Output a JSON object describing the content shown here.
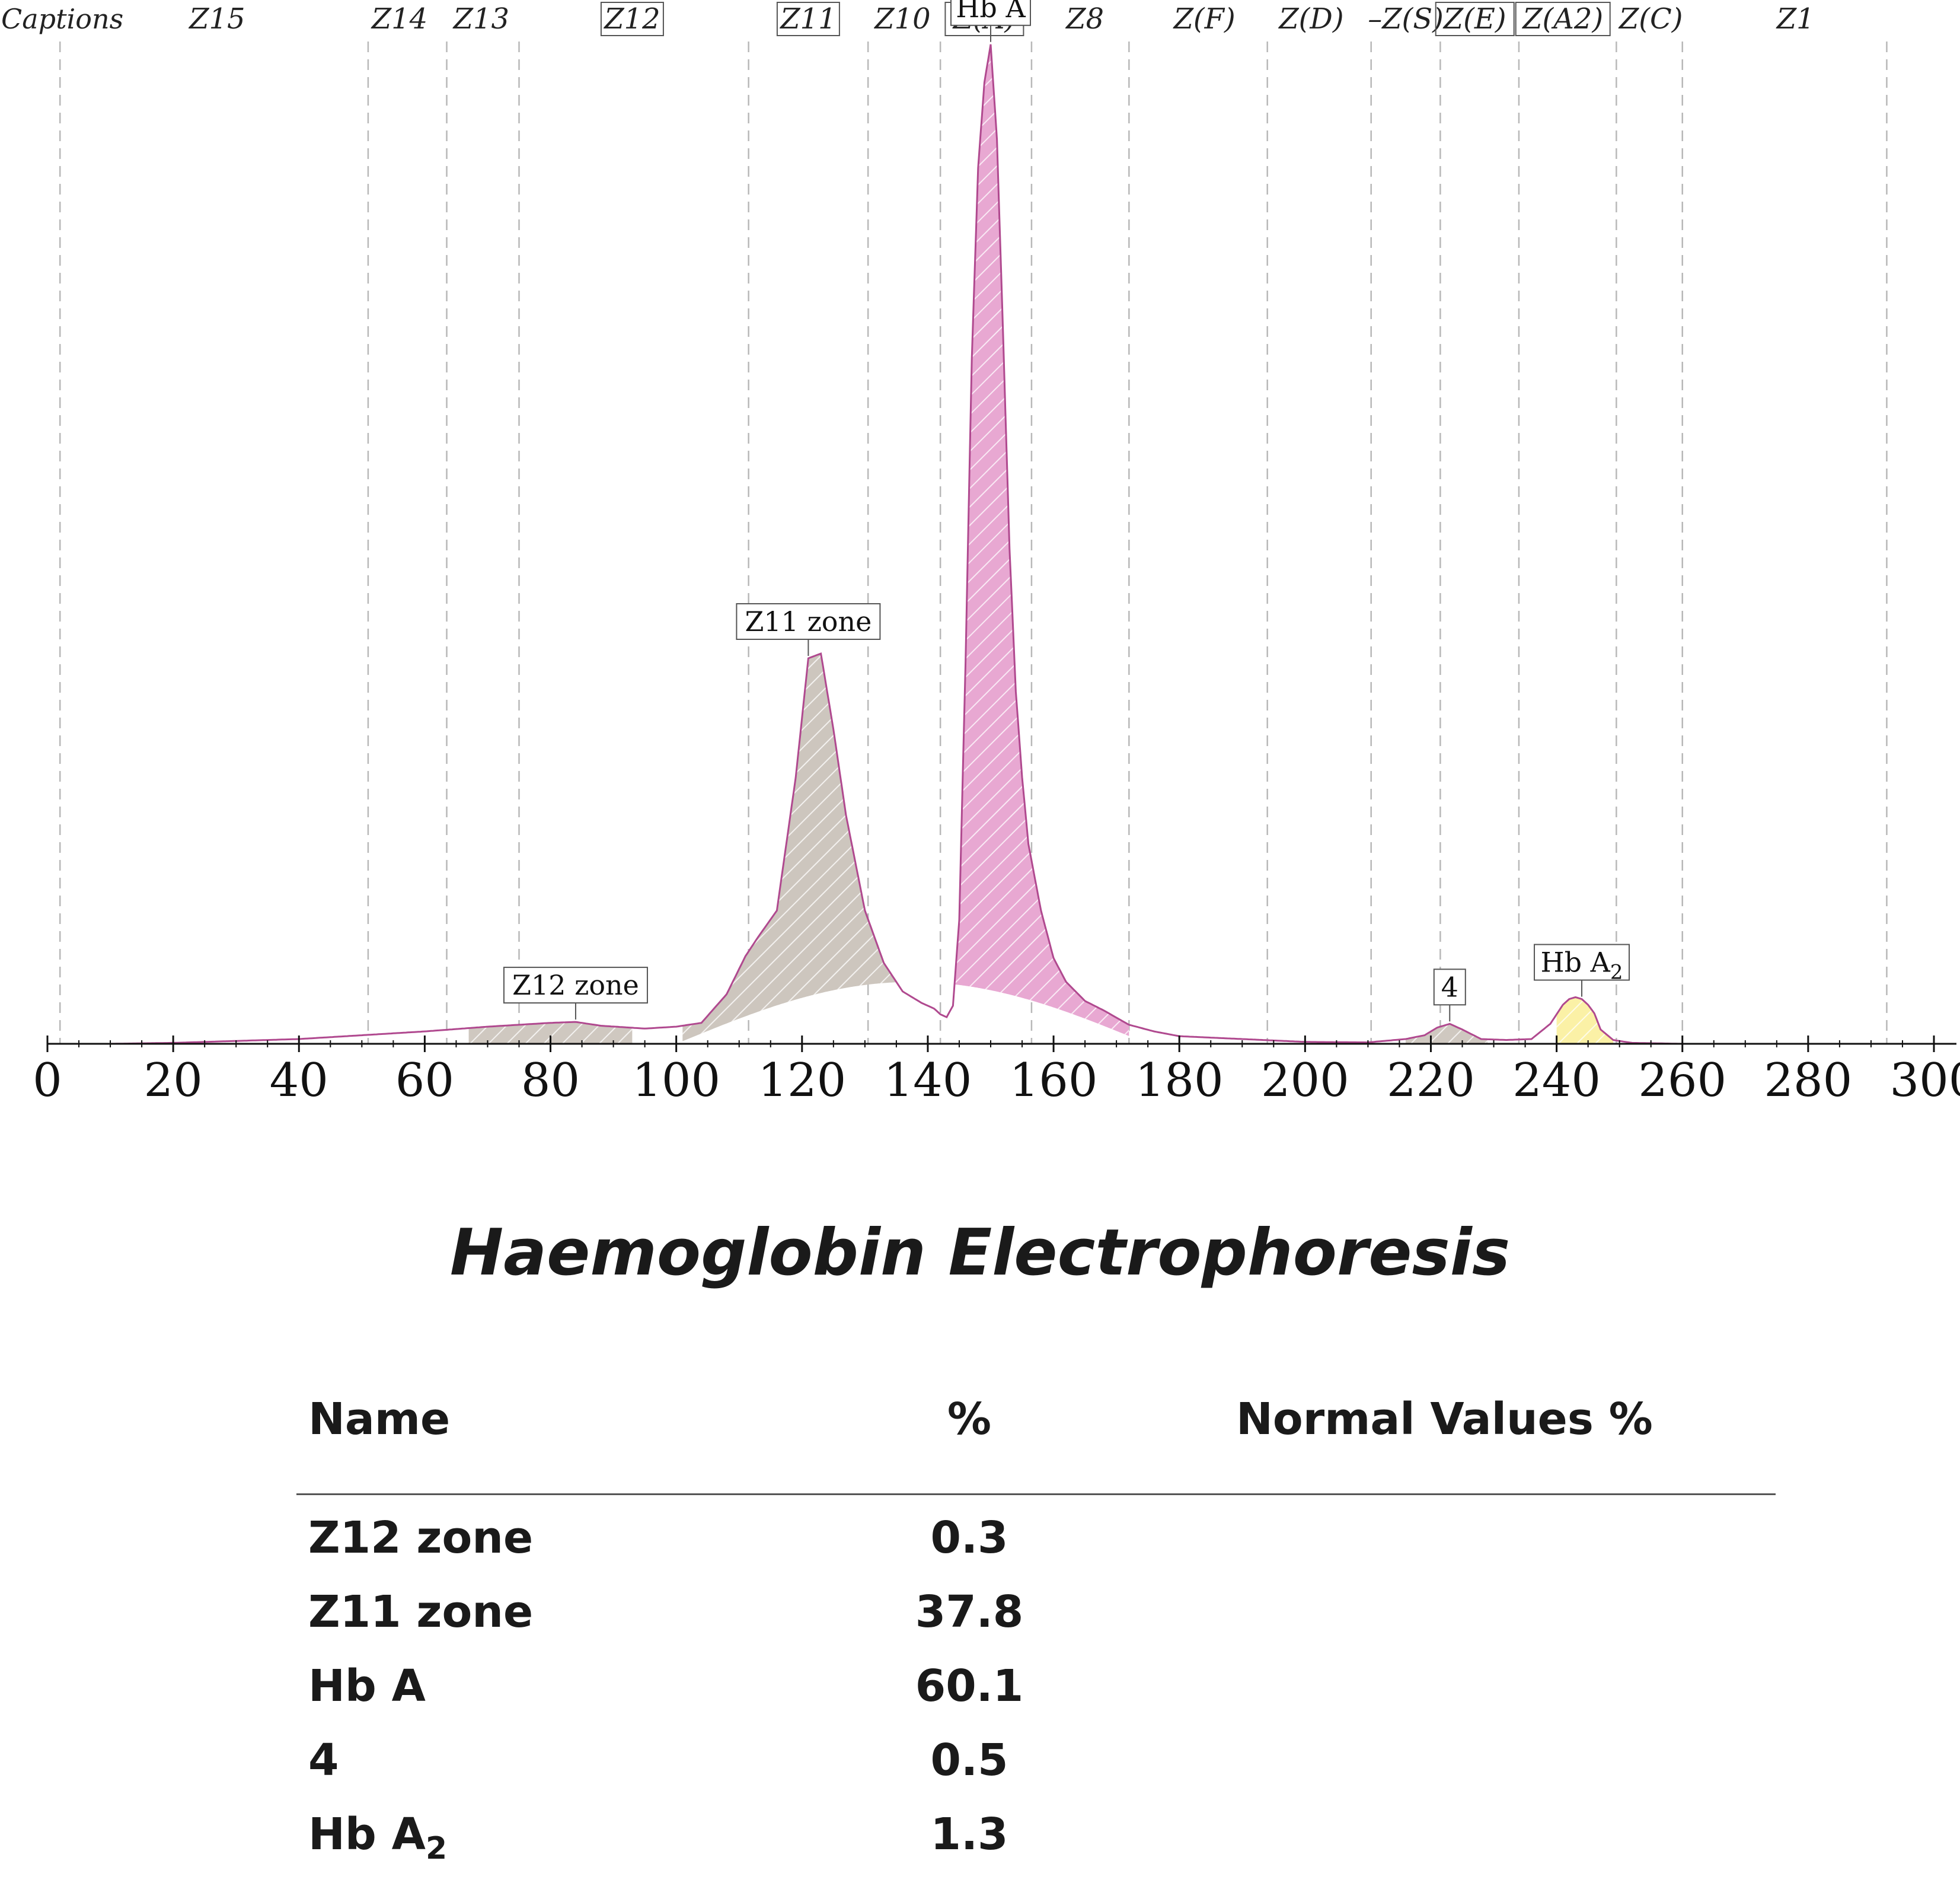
{
  "chart_data": {
    "type": "area",
    "title": "",
    "xlabel": "",
    "ylabel": "",
    "xlim": [
      0,
      300
    ],
    "x_ticks": [
      "0",
      "20",
      "40",
      "60",
      "80",
      "100",
      "120",
      "140",
      "160",
      "180",
      "200",
      "220",
      "240",
      "260",
      "280",
      "300"
    ],
    "x_tick_values": [
      0,
      20,
      40,
      60,
      80,
      100,
      120,
      140,
      160,
      180,
      200,
      220,
      240,
      260,
      280,
      300
    ],
    "grid": "vertical dashed zone boundaries",
    "caption_row_label": "Captions",
    "zones": [
      {
        "label": "Z15",
        "boxed": false
      },
      {
        "label": "Z14",
        "boxed": false
      },
      {
        "label": "Z13",
        "boxed": false
      },
      {
        "label": "Z12",
        "boxed": true
      },
      {
        "label": "Z11",
        "boxed": true
      },
      {
        "label": "Z10",
        "boxed": false
      },
      {
        "label": "Z(A)",
        "boxed": true
      },
      {
        "label": "Z8",
        "boxed": false
      },
      {
        "label": "Z(F)",
        "boxed": false
      },
      {
        "label": "Z(D)",
        "boxed": false
      },
      {
        "label": "–Z(S)",
        "boxed": false
      },
      {
        "label": "Z(E)",
        "boxed": true
      },
      {
        "label": "Z(A2)",
        "boxed": true
      },
      {
        "label": "Z(C)",
        "boxed": false
      },
      {
        "label": "Z1",
        "boxed": false
      }
    ],
    "zone_centers": [
      27,
      56,
      69,
      93,
      121,
      136,
      149,
      165,
      184,
      201,
      216,
      227,
      241,
      255,
      278
    ],
    "zone_boundaries": [
      2,
      51,
      63.5,
      75,
      111.5,
      130.5,
      142,
      156.5,
      172,
      194,
      210.5,
      221.5,
      234,
      249.5,
      260,
      292.5
    ],
    "ylim": [
      0,
      100
    ],
    "trace": {
      "x": [
        0,
        10,
        20,
        30,
        40,
        50,
        60,
        70,
        80,
        84,
        88,
        95,
        100,
        104,
        108,
        111,
        113,
        116,
        119,
        121,
        123,
        125,
        127,
        130,
        133,
        136,
        139,
        141,
        142,
        143,
        144,
        145,
        146,
        147,
        148,
        149,
        150,
        151,
        152,
        153,
        154,
        155,
        156,
        158,
        160,
        162,
        165,
        168,
        172,
        176,
        180,
        190,
        200,
        210,
        216,
        219,
        221,
        223,
        225,
        228,
        232,
        236,
        239,
        241,
        242,
        243,
        244,
        245,
        246,
        247,
        249,
        252,
        260,
        280,
        300
      ],
      "y": [
        0,
        0,
        0.1,
        0.3,
        0.5,
        0.9,
        1.3,
        1.8,
        2.2,
        2.3,
        1.9,
        1.6,
        1.8,
        2.2,
        5.2,
        9.2,
        11.2,
        14.0,
        28,
        40.5,
        41.0,
        33,
        24,
        14,
        8.5,
        5.5,
        4.3,
        3.7,
        3.1,
        2.8,
        4,
        13,
        40,
        72,
        92,
        101,
        105,
        95,
        74,
        52,
        37,
        28,
        21,
        14,
        9,
        6.5,
        4.5,
        3.5,
        2,
        1.3,
        0.8,
        0.5,
        0.2,
        0.15,
        0.5,
        0.9,
        1.7,
        2.1,
        1.5,
        0.5,
        0.4,
        0.5,
        2.1,
        4.1,
        4.7,
        4.9,
        4.7,
        4.1,
        3.2,
        1.5,
        0.4,
        0.1,
        0,
        0,
        0
      ]
    },
    "peaks": [
      {
        "name": "Z12 zone",
        "label": "Z12 zone",
        "start": 67,
        "end": 93,
        "apex_x": 84,
        "color": "#cfc8c0",
        "percent": 0.3
      },
      {
        "name": "Z11 zone",
        "label": "Z11 zone",
        "start": 101,
        "end": 142.5,
        "apex_x": 121,
        "color": "#cdc6be",
        "percent": 37.8
      },
      {
        "name": "Hb A",
        "label": "Hb A",
        "start": 142.5,
        "end": 172,
        "apex_x": 150,
        "color": "#e8a8d2",
        "percent": 60.1
      },
      {
        "name": "4",
        "label": "4",
        "start": 216,
        "end": 229,
        "apex_x": 223,
        "color": "#cfc8c0",
        "percent": 0.5
      },
      {
        "name": "Hb A2",
        "label": "Hb A",
        "label_sub": "2",
        "start": 240,
        "end": 249,
        "apex_x": 244,
        "color": "#fbf1a6",
        "percent": 1.3
      }
    ],
    "trace_color": "#b0498f"
  },
  "report": {
    "title": "Haemoglobin Electrophoresis",
    "headers": {
      "name": "Name",
      "percent": "%",
      "normal": "Normal Values %"
    },
    "rows": [
      {
        "name": "Z12 zone",
        "sub": "",
        "percent": "0.3",
        "normal": ""
      },
      {
        "name": "Z11 zone",
        "sub": "",
        "percent": "37.8",
        "normal": ""
      },
      {
        "name": "Hb A",
        "sub": "",
        "percent": "60.1",
        "normal": ""
      },
      {
        "name": "4",
        "sub": "",
        "percent": "0.5",
        "normal": ""
      },
      {
        "name": "Hb A",
        "sub": "2",
        "percent": "1.3",
        "normal": ""
      }
    ]
  }
}
